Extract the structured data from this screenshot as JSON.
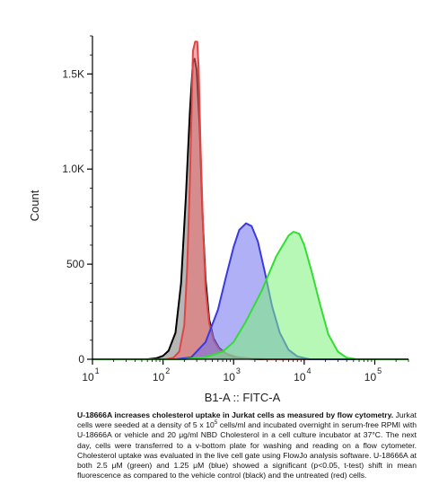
{
  "chart_data": {
    "type": "area",
    "xlabel": "B1-A :: FITC-A",
    "ylabel": "Count",
    "x_scale": "log",
    "xlim": [
      10,
      300000
    ],
    "ylim": [
      0,
      1700
    ],
    "y_ticks": [
      {
        "value": 0,
        "label": "0"
      },
      {
        "value": 500,
        "label": "500"
      },
      {
        "value": 1000,
        "label": "1.0K"
      },
      {
        "value": 1500,
        "label": "1.5K"
      }
    ],
    "x_ticks": [
      {
        "value": 10,
        "base": "10",
        "exp": "1"
      },
      {
        "value": 100,
        "base": "10",
        "exp": "2"
      },
      {
        "value": 1000,
        "base": "10",
        "exp": "3"
      },
      {
        "value": 10000,
        "base": "10",
        "exp": "4"
      },
      {
        "value": 100000,
        "base": "10",
        "exp": "5"
      }
    ],
    "series": [
      {
        "color": "#000000",
        "fill": "#7a7a7a",
        "points": [
          [
            10,
            0
          ],
          [
            60,
            0
          ],
          [
            80,
            5
          ],
          [
            100,
            18
          ],
          [
            120,
            45
          ],
          [
            150,
            140
          ],
          [
            180,
            400
          ],
          [
            210,
            850
          ],
          [
            240,
            1300
          ],
          [
            265,
            1560
          ],
          [
            280,
            1580
          ],
          [
            300,
            1520
          ],
          [
            330,
            1220
          ],
          [
            360,
            780
          ],
          [
            400,
            420
          ],
          [
            450,
            210
          ],
          [
            520,
            110
          ],
          [
            620,
            60
          ],
          [
            780,
            30
          ],
          [
            1000,
            12
          ],
          [
            1500,
            3
          ],
          [
            2500,
            0
          ],
          [
            300000,
            0
          ]
        ]
      },
      {
        "color": "#e04545",
        "fill": "#f06a6a",
        "points": [
          [
            10,
            0
          ],
          [
            110,
            0
          ],
          [
            140,
            8
          ],
          [
            170,
            40
          ],
          [
            200,
            180
          ],
          [
            220,
            480
          ],
          [
            240,
            930
          ],
          [
            255,
            1350
          ],
          [
            265,
            1620
          ],
          [
            285,
            1670
          ],
          [
            305,
            1670
          ],
          [
            320,
            1530
          ],
          [
            340,
            1120
          ],
          [
            370,
            680
          ],
          [
            400,
            370
          ],
          [
            450,
            190
          ],
          [
            520,
            100
          ],
          [
            620,
            55
          ],
          [
            800,
            28
          ],
          [
            1100,
            12
          ],
          [
            1800,
            3
          ],
          [
            3000,
            0
          ],
          [
            300000,
            0
          ]
        ]
      },
      {
        "color": "#3a3ae0",
        "fill": "#7070f0",
        "points": [
          [
            10,
            0
          ],
          [
            150,
            0
          ],
          [
            250,
            10
          ],
          [
            400,
            90
          ],
          [
            600,
            260
          ],
          [
            800,
            450
          ],
          [
            1000,
            590
          ],
          [
            1200,
            680
          ],
          [
            1500,
            715
          ],
          [
            1800,
            700
          ],
          [
            2200,
            620
          ],
          [
            2800,
            450
          ],
          [
            3500,
            280
          ],
          [
            4500,
            140
          ],
          [
            6000,
            50
          ],
          [
            8000,
            15
          ],
          [
            12000,
            0
          ],
          [
            300000,
            0
          ]
        ]
      },
      {
        "color": "#33dd33",
        "fill": "#7cf27c",
        "points": [
          [
            10,
            0
          ],
          [
            200,
            0
          ],
          [
            400,
            12
          ],
          [
            700,
            40
          ],
          [
            1000,
            90
          ],
          [
            1500,
            200
          ],
          [
            2500,
            360
          ],
          [
            4000,
            540
          ],
          [
            6000,
            650
          ],
          [
            7000,
            670
          ],
          [
            8500,
            660
          ],
          [
            10000,
            600
          ],
          [
            13000,
            450
          ],
          [
            17000,
            280
          ],
          [
            22000,
            130
          ],
          [
            30000,
            40
          ],
          [
            40000,
            8
          ],
          [
            55000,
            0
          ],
          [
            300000,
            0
          ]
        ]
      }
    ]
  },
  "caption": {
    "title": "U-18666A increases cholesterol uptake in Jurkat cells as measured by flow cytometry.",
    "body_part1": "Jurkat cells were seeded at a density of 5 x 10",
    "body_sup": "5",
    "body_part2": " cells/ml and incubated overnight in serum-free RPMI with U-18666A or vehicle and 20 μg/ml NBD Cholesterol in a cell culture incubator at 37°C. The next day, cells were transferred to a v-bottom plate for washing and reading on a flow cytometer. Cholesterol uptake was evaluated in the live cell gate using FlowJo analysis software. U-18666A at both 2.5 μM (green) and 1.25 μM (blue) showed a significant (p<0.05, t-test) shift in mean fluorescence as compared to the vehicle control (black) and the untreated (red) cells."
  }
}
